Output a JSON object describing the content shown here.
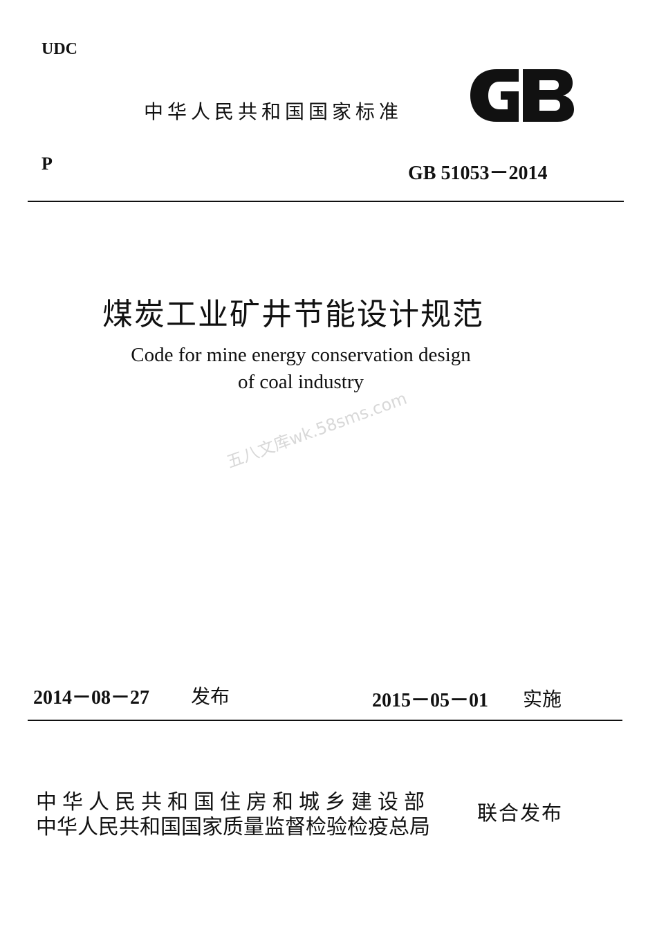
{
  "udc": "UDC",
  "national_standard": "中华人民共和国国家标准",
  "logo": "GB",
  "category": "P",
  "standard_number": "GB 51053－2014",
  "title_cn": "煤炭工业矿井节能设计规范",
  "title_en_line1": "Code for mine energy conservation design",
  "title_en_line2": "of coal industry",
  "watermark": "五八文库wk.58sms.com",
  "issue_date": "2014－08－27",
  "issue_label": "发布",
  "effective_date": "2015－05－01",
  "effective_label": "实施",
  "issuers": [
    "中华人民共和国住房和城乡建设部",
    "中华人民共和国国家质量监督检验检疫总局"
  ],
  "joint_label": "联合发布"
}
